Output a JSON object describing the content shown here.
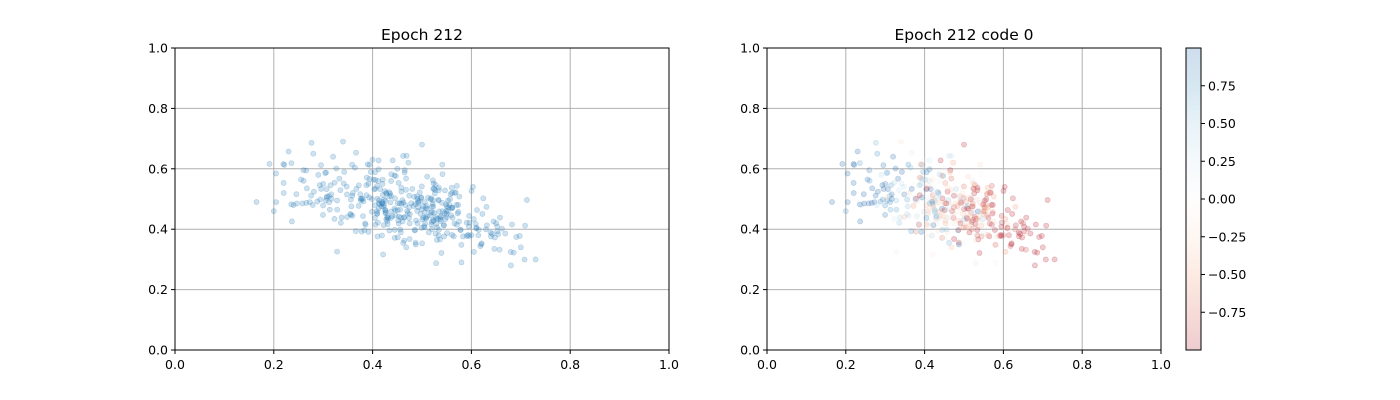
{
  "chart_data": [
    {
      "type": "scatter",
      "title": "Epoch 212",
      "xlabel": "",
      "ylabel": "",
      "xlim": [
        0.0,
        1.0
      ],
      "ylim": [
        0.0,
        1.0
      ],
      "x_ticks": [
        "0.0",
        "0.2",
        "0.4",
        "0.6",
        "0.8",
        "1.0"
      ],
      "y_ticks": [
        "0.0",
        "0.2",
        "0.4",
        "0.6",
        "0.8",
        "1.0"
      ],
      "grid": true,
      "marker_color": "#1f77b4",
      "marker_alpha": 0.22,
      "approx_point_count": 400,
      "x_mean": 0.455,
      "y_mean": 0.475,
      "x_sd": 0.115,
      "y_sd": 0.075,
      "xy_correlation": -0.55,
      "x_range": [
        0.165,
        0.73
      ],
      "y_range": [
        0.275,
        0.695
      ],
      "x": [
        0.165,
        0.2,
        0.22,
        0.24,
        0.28,
        0.3,
        0.32,
        0.34,
        0.36,
        0.38,
        0.4,
        0.42,
        0.45,
        0.5,
        0.52,
        0.55,
        0.58,
        0.6,
        0.62,
        0.65,
        0.68,
        0.7,
        0.73
      ],
      "y": [
        0.49,
        0.46,
        0.52,
        0.48,
        0.65,
        0.55,
        0.64,
        0.69,
        0.52,
        0.5,
        0.63,
        0.55,
        0.6,
        0.68,
        0.4,
        0.45,
        0.29,
        0.38,
        0.35,
        0.42,
        0.28,
        0.34,
        0.3
      ]
    },
    {
      "type": "scatter",
      "title": "Epoch 212 code 0",
      "xlabel": "",
      "ylabel": "",
      "xlim": [
        0.0,
        1.0
      ],
      "ylim": [
        0.0,
        1.0
      ],
      "x_ticks": [
        "0.0",
        "0.2",
        "0.4",
        "0.6",
        "0.8",
        "1.0"
      ],
      "y_ticks": [
        "0.0",
        "0.2",
        "0.4",
        "0.6",
        "0.8",
        "1.0"
      ],
      "grid": true,
      "marker_alpha": 0.22,
      "points": "same as Epoch 212",
      "color_by": "code 0",
      "colormap": "RdBu",
      "color_trend": "blue at left (x < 0.35), near zero in middle, red toward right",
      "colorbar": {
        "range": [
          -1.0,
          1.0
        ],
        "ticks": [
          0.75,
          0.5,
          0.25,
          0.0,
          -0.25,
          -0.5,
          -0.75
        ],
        "tick_labels": [
          "0.75",
          "0.50",
          "0.25",
          "0.00",
          "−0.25",
          "−0.50",
          "−0.75"
        ],
        "colors": [
          "#2166ac",
          "#4393c3",
          "#92c5de",
          "#d1e5f0",
          "#f7f7f7",
          "#fddbc7",
          "#f4a582",
          "#d6604d",
          "#b2182b"
        ],
        "alpha": 0.22
      }
    }
  ]
}
